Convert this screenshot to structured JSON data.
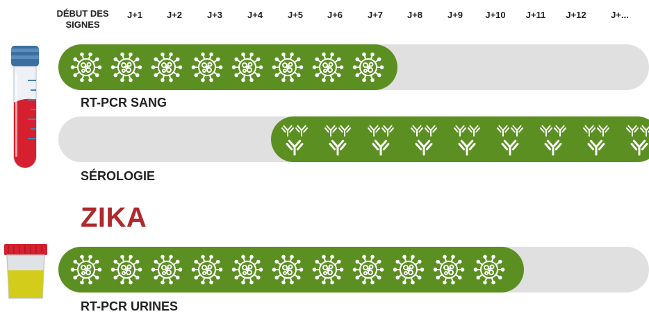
{
  "header": {
    "days": [
      "DÉBUT DES\nSIGNES",
      "J+1",
      "J+2",
      "J+3",
      "J+4",
      "J+5",
      "J+6",
      "J+7",
      "J+8",
      "J+9",
      "J+10",
      "J+11",
      "J+12",
      "J+..."
    ]
  },
  "rows": [
    {
      "label": "RT-PCR SANG",
      "icon": "virus-icon",
      "active_from_day": 0,
      "active_to_day": 8
    },
    {
      "label": "SÉROLOGIE",
      "icon": "antibody-icon",
      "active_from_day": 5,
      "active_to_day": 14
    }
  ],
  "section_title": "ZIKA",
  "zika_rows": [
    {
      "label": "RT-PCR URINES",
      "icon": "virus-icon",
      "active_from_day": 0,
      "active_to_day": 11
    }
  ],
  "colors": {
    "fill": "#5b8f22",
    "track": "#e0e0e0",
    "title": "#b0282b",
    "blood": "#d7202f",
    "tube_cap": "#3d6f9e",
    "urine": "#d4cc1a",
    "urine_cap": "#d7202f"
  }
}
